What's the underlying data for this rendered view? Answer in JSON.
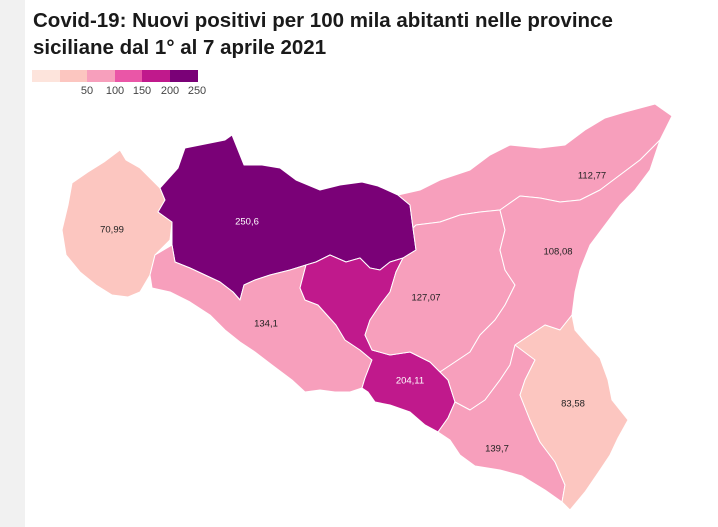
{
  "title_lines": [
    "Covid-19: Nuovi positivi per 100 mila abitanti nelle province",
    "siciliane dal 1° al 7 aprile  2021"
  ],
  "legend": {
    "colors": [
      "#fde4dc",
      "#fcc6c0",
      "#f79fbc",
      "#ea56a7",
      "#c0198c",
      "#7a0177"
    ],
    "ticks": [
      "50",
      "100",
      "150",
      "200",
      "250"
    ]
  },
  "chart_data": {
    "type": "choropleth",
    "region": "Sicilia",
    "regions": [
      {
        "name": "Trapani",
        "value": 70.99,
        "label": "70,99",
        "color": "#fcc6c0"
      },
      {
        "name": "Palermo",
        "value": 250.6,
        "label": "250,6",
        "color": "#7a0177"
      },
      {
        "name": "Messina",
        "value": 112.77,
        "label": "112,77",
        "color": "#f79fbc"
      },
      {
        "name": "Agrigento",
        "value": 134.1,
        "label": "134,1",
        "color": "#f79fbc"
      },
      {
        "name": "Caltanissetta",
        "value": 204.11,
        "label": "204,11",
        "color": "#c0198c"
      },
      {
        "name": "Enna",
        "value": 127.07,
        "label": "127,07",
        "color": "#f79fbc"
      },
      {
        "name": "Catania",
        "value": 108.08,
        "label": "108,08",
        "color": "#f79fbc"
      },
      {
        "name": "Ragusa",
        "value": 139.7,
        "label": "139,7",
        "color": "#f79fbc"
      },
      {
        "name": "Siracusa",
        "value": 83.58,
        "label": "83,58",
        "color": "#fcc6c0"
      }
    ]
  }
}
